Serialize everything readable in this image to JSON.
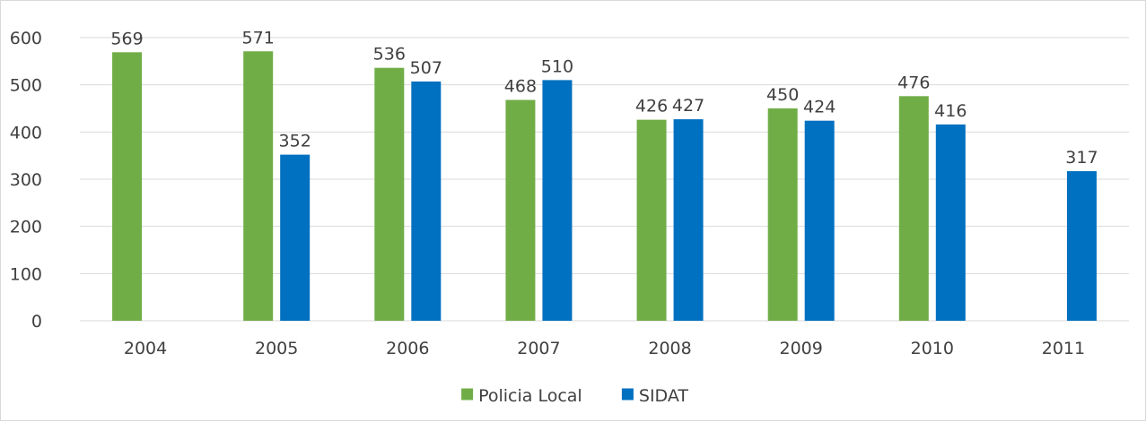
{
  "chart_data": {
    "type": "bar",
    "categories": [
      "2004",
      "2005",
      "2006",
      "2007",
      "2008",
      "2009",
      "2010",
      "2011"
    ],
    "series": [
      {
        "name": "Policia Local",
        "color": "#70ad47",
        "values": [
          569,
          571,
          536,
          468,
          426,
          450,
          476,
          null
        ],
        "labels": [
          "569",
          "571",
          "536",
          "468",
          "426",
          "450",
          "476",
          ""
        ]
      },
      {
        "name": "SIDAT",
        "color": "#0070c0",
        "values": [
          null,
          352,
          507,
          510,
          427,
          424,
          416,
          317
        ],
        "labels": [
          "",
          "352",
          "507",
          "510",
          "427",
          "424",
          "416",
          "317"
        ]
      }
    ],
    "y_ticks": [
      "0",
      "100",
      "200",
      "300",
      "400",
      "500",
      "600"
    ],
    "ylim": [
      0,
      600
    ],
    "grid": true,
    "legend_position": "bottom",
    "gridline_color": "#d9d9d9"
  }
}
